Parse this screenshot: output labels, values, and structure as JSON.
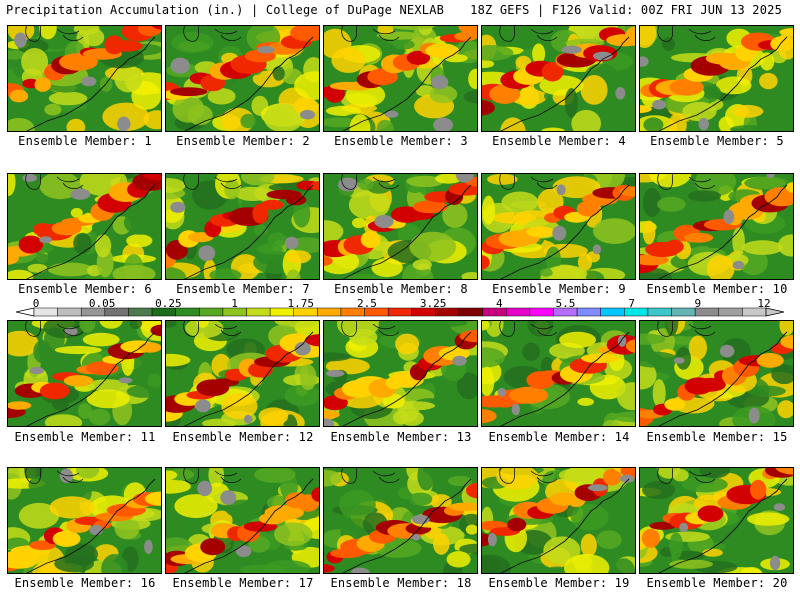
{
  "header": {
    "left": "Precipitation Accumulation (in.) | College of DuPage NEXLAB",
    "right": "18Z GEFS | F126 Valid: 00Z FRI JUN 13 2025"
  },
  "panels": [
    {
      "label": "Ensemble Member: 1"
    },
    {
      "label": "Ensemble Member: 2"
    },
    {
      "label": "Ensemble Member: 3"
    },
    {
      "label": "Ensemble Member: 4"
    },
    {
      "label": "Ensemble Member: 5"
    },
    {
      "label": "Ensemble Member: 6"
    },
    {
      "label": "Ensemble Member: 7"
    },
    {
      "label": "Ensemble Member: 8"
    },
    {
      "label": "Ensemble Member: 9"
    },
    {
      "label": "Ensemble Member: 10"
    },
    {
      "label": "Ensemble Member: 11"
    },
    {
      "label": "Ensemble Member: 12"
    },
    {
      "label": "Ensemble Member: 13"
    },
    {
      "label": "Ensemble Member: 14"
    },
    {
      "label": "Ensemble Member: 15"
    },
    {
      "label": "Ensemble Member: 16"
    },
    {
      "label": "Ensemble Member: 17"
    },
    {
      "label": "Ensemble Member: 18"
    },
    {
      "label": "Ensemble Member: 19"
    },
    {
      "label": "Ensemble Member: 20"
    }
  ],
  "colorbar": {
    "tick_labels": [
      "0",
      "0.05",
      "0.25",
      "1",
      "1.75",
      "2.5",
      "3.25",
      "4",
      "5.5",
      "7",
      "9",
      "12"
    ],
    "colors": [
      "#e6e6e6",
      "#bdbdbd",
      "#969696",
      "#737373",
      "#4e7a4e",
      "#1d6b1d",
      "#2e8b22",
      "#55a822",
      "#8fc31f",
      "#c3dc1a",
      "#f0f000",
      "#ffd200",
      "#ffaa00",
      "#ff8000",
      "#ff5a00",
      "#f02800",
      "#d20000",
      "#a50000",
      "#7d0000",
      "#c8007d",
      "#e600c8",
      "#ff00ff",
      "#b46eff",
      "#7d8cff",
      "#00c8ff",
      "#00e6e6",
      "#3cc8c8",
      "#64b4b4",
      "#8c8c8c",
      "#a0a0a0",
      "#c8c8c8"
    ]
  }
}
